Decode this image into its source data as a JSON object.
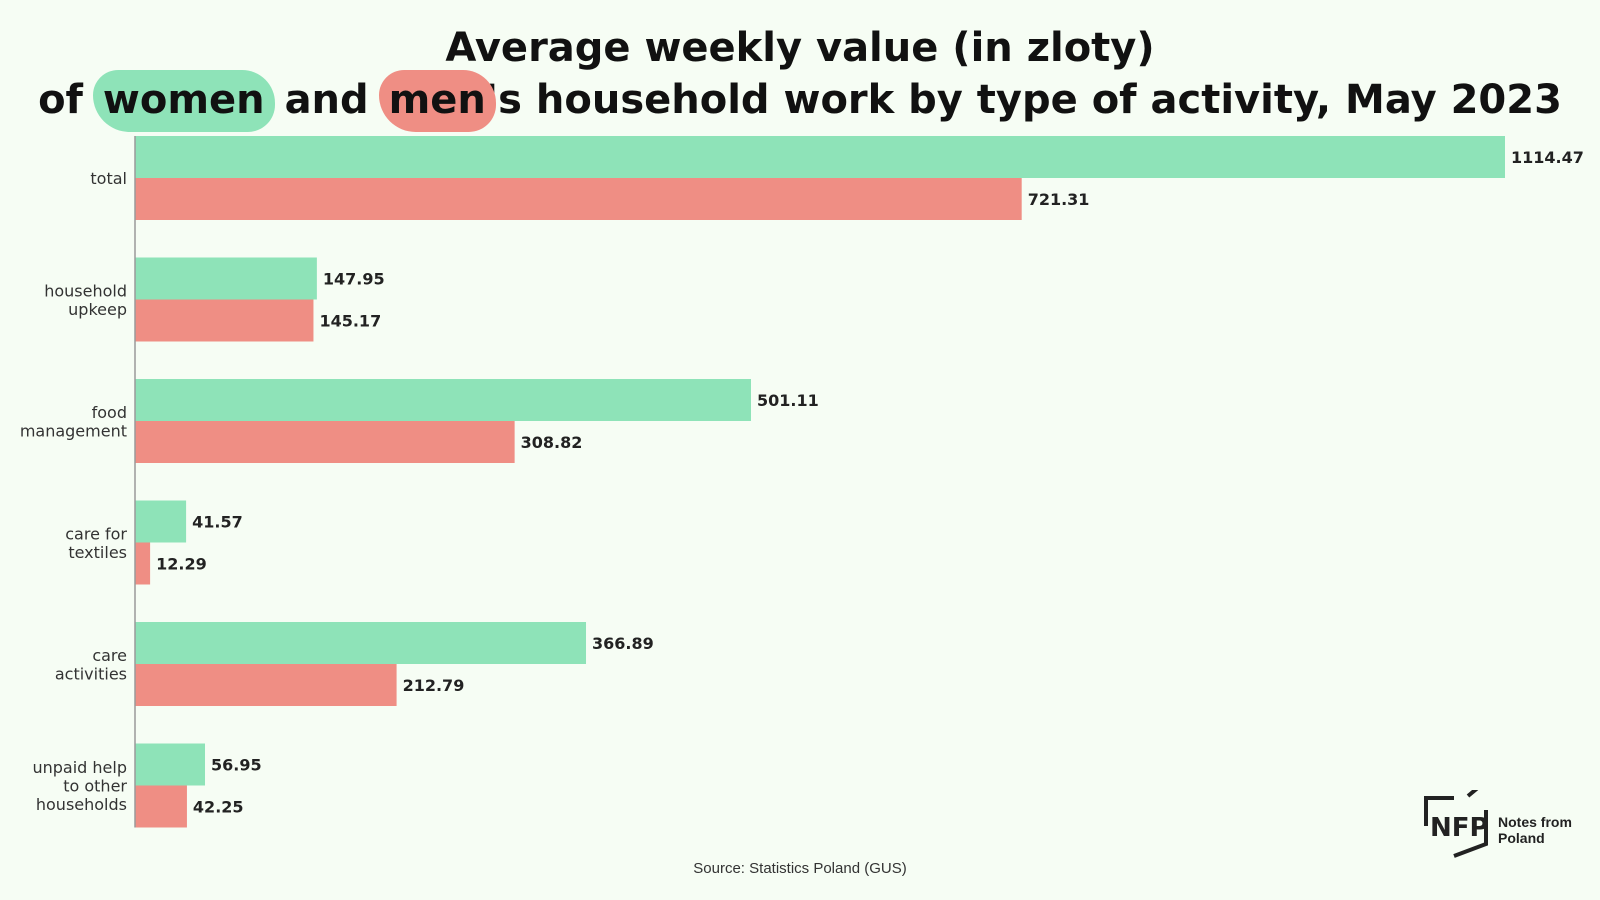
{
  "title": {
    "line1": "Average weekly value (in zloty)",
    "line2_prefix": "of",
    "line2_women": "women",
    "line2_and": "and",
    "line2_men": "men",
    "line2_suffix": "'s household work by type of activity, May 2023"
  },
  "source": "Source: Statistics Poland (GUS)",
  "logo": {
    "mark": "NFP",
    "text_line1": "Notes from",
    "text_line2": "Poland"
  },
  "colors": {
    "women": "#8ee3b8",
    "men": "#ef8e84",
    "axis": "#9a9a9a",
    "label": "#333333",
    "value": "#222222"
  },
  "chart_data": {
    "type": "bar",
    "orientation": "horizontal",
    "categories": [
      [
        "total"
      ],
      [
        "household",
        "upkeep"
      ],
      [
        "food",
        "management"
      ],
      [
        "care for",
        "textiles"
      ],
      [
        "care",
        "activities"
      ],
      [
        "unpaid help",
        "to other",
        "households"
      ]
    ],
    "series": [
      {
        "key": "women",
        "values": [
          1114.47,
          147.95,
          501.11,
          41.57,
          366.89,
          56.95
        ]
      },
      {
        "key": "men",
        "values": [
          721.31,
          145.17,
          308.82,
          12.29,
          212.79,
          42.25
        ]
      }
    ],
    "xlim": [
      0,
      1114.47
    ],
    "grid": false,
    "legend": "none"
  }
}
